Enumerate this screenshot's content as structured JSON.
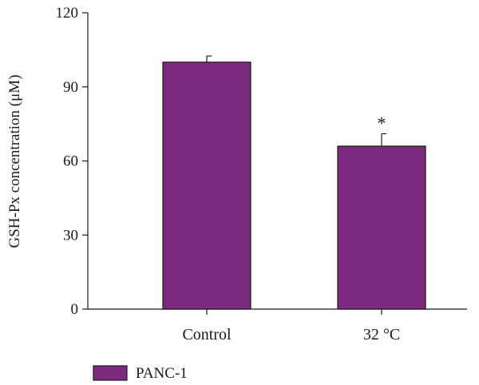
{
  "chart_data": {
    "type": "bar",
    "categories": [
      "Control",
      "32 °C"
    ],
    "series": [
      {
        "name": "PANC-1",
        "values": [
          100,
          66
        ],
        "errors": [
          2.5,
          5
        ],
        "color": "#7b2a7e"
      }
    ],
    "ylabel": "GSH-Px concentration (μM)",
    "xlabel": "",
    "ylim": [
      0,
      120
    ],
    "yticks": [
      0,
      30,
      60,
      90,
      120
    ],
    "annotations": [
      {
        "category": "32 °C",
        "text": "*"
      }
    ],
    "legend": {
      "placement": "bottom-left",
      "entries": [
        "PANC-1"
      ]
    },
    "grid": false
  }
}
